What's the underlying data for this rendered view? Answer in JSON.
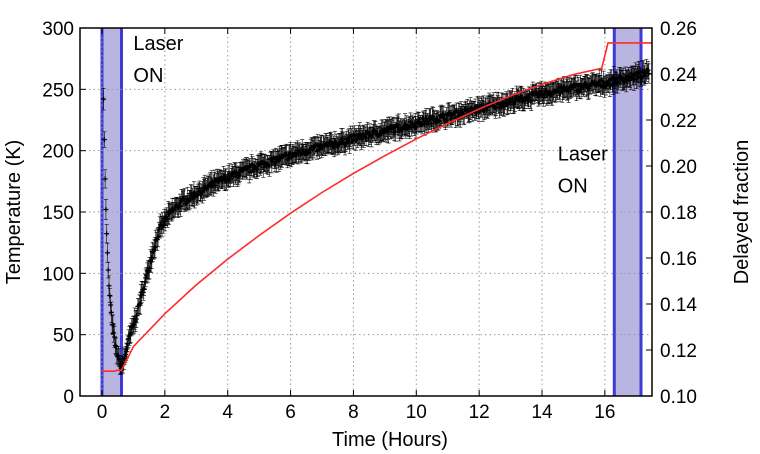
{
  "chart_data": {
    "type": "line",
    "title": "",
    "xlabel": "Time (Hours)",
    "ylabel": "Temperature (K)",
    "y2label": "Delayed fraction",
    "xlim": [
      -0.7,
      17.5
    ],
    "ylim": [
      0,
      300
    ],
    "y2lim": [
      0.1,
      0.26
    ],
    "xticks": [
      0,
      2,
      4,
      6,
      8,
      10,
      12,
      14,
      16
    ],
    "yticks": [
      0,
      50,
      100,
      150,
      200,
      250,
      300
    ],
    "y2ticks": [
      0.1,
      0.12,
      0.14,
      0.16,
      0.18,
      0.2,
      0.22,
      0.24,
      0.26
    ],
    "grid": true,
    "laser_on_intervals": [
      [
        0.0,
        0.62
      ],
      [
        16.3,
        17.15
      ]
    ],
    "annotations": [
      {
        "text_lines": [
          "Laser",
          "ON"
        ],
        "x": 1.0,
        "y": 282
      },
      {
        "text_lines": [
          "Laser",
          "ON"
        ],
        "x": 14.5,
        "y": 192
      }
    ],
    "series": [
      {
        "axis": "left",
        "style": "black markers with error bars",
        "error": 7,
        "x": [
          0.05,
          0.1,
          0.15,
          0.2,
          0.25,
          0.3,
          0.35,
          0.4,
          0.45,
          0.5,
          0.55,
          0.6,
          0.65,
          0.7,
          0.8,
          0.9,
          1.0,
          1.1,
          1.2,
          1.3,
          1.4,
          1.5,
          1.6,
          1.7,
          1.8,
          1.9,
          2.0,
          2.2,
          2.5,
          3.0,
          3.5,
          4.0,
          4.5,
          5.0,
          5.5,
          6.0,
          6.5,
          7.0,
          7.5,
          8.0,
          8.5,
          9.0,
          9.5,
          10.0,
          10.5,
          11.0,
          11.5,
          12.0,
          12.5,
          13.0,
          13.5,
          14.0,
          14.5,
          15.0,
          15.5,
          16.0,
          16.5,
          17.0,
          17.4
        ],
        "y": [
          245,
          175,
          130,
          100,
          80,
          65,
          55,
          45,
          38,
          32,
          28,
          25,
          24,
          30,
          40,
          50,
          58,
          66,
          76,
          86,
          96,
          106,
          116,
          125,
          133,
          139,
          143,
          150,
          157,
          165,
          172,
          178,
          183,
          188,
          192,
          196,
          200,
          203,
          206,
          210,
          213,
          216,
          219,
          222,
          225,
          228,
          231,
          234,
          237,
          240,
          243,
          246,
          249,
          251,
          253,
          255,
          258,
          261,
          263
        ]
      },
      {
        "axis": "right",
        "style": "red line",
        "color": "#ff2a2a",
        "x": [
          0.0,
          0.4,
          0.5,
          0.62,
          1.0,
          2.0,
          3.0,
          4.0,
          5.0,
          6.0,
          7.0,
          8.0,
          9.0,
          10.0,
          11.0,
          12.0,
          13.0,
          14.0,
          15.0,
          15.9,
          16.1,
          17.5
        ],
        "y": [
          0.1108,
          0.1108,
          0.1112,
          0.1112,
          0.1215,
          0.1358,
          0.1483,
          0.1595,
          0.1698,
          0.1795,
          0.1885,
          0.1968,
          0.2045,
          0.2118,
          0.2185,
          0.2248,
          0.2305,
          0.2355,
          0.2398,
          0.2425,
          0.2535,
          0.2535
        ]
      }
    ],
    "colors": {
      "laser_band_fill": "#b9b4e0",
      "laser_band_edge": "#3b3bd6",
      "marker": "#000000",
      "red_line": "#ff2a2a",
      "grid": "#9a9a9a"
    }
  }
}
